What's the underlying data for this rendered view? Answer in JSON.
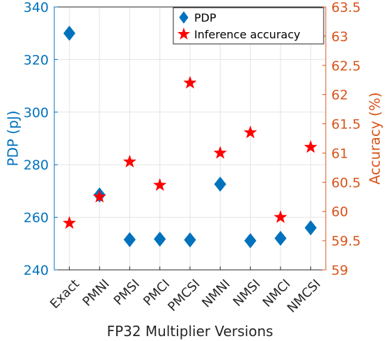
{
  "chart_data": {
    "type": "scatter",
    "categories": [
      "Exact",
      "PMNI",
      "PMSI",
      "PMCI",
      "PMCSI",
      "NMNI",
      "NMSI",
      "NMCI",
      "NMCSI"
    ],
    "series": [
      {
        "name": "PDP",
        "axis": "left",
        "marker": "diamond",
        "color": "#0072BD",
        "values": [
          330,
          268.5,
          251.5,
          251.7,
          251.4,
          272.6,
          251.1,
          252,
          256
        ]
      },
      {
        "name": "Inference accuracy",
        "axis": "right",
        "marker": "star",
        "color": "#FF0000",
        "values": [
          59.8,
          60.25,
          60.85,
          60.45,
          62.2,
          61.0,
          61.35,
          59.9,
          61.1
        ]
      }
    ],
    "xlabel": "FP32 Multiplier Versions",
    "ylabel_left": "PDP (pJ)",
    "ylabel_right": "Accuracy (%)",
    "ylim_left": [
      240,
      340
    ],
    "yticks_left": [
      "240",
      "260",
      "280",
      "300",
      "320",
      "340"
    ],
    "ylim_right": [
      59,
      63.5
    ],
    "yticks_right": [
      "59",
      "59.5",
      "60",
      "60.5",
      "61",
      "61.5",
      "62",
      "62.5",
      "63",
      "63.5"
    ],
    "left_axis_color": "#0072BD",
    "right_axis_color": "#D95319",
    "grid": true,
    "legend_position": "top-right"
  }
}
